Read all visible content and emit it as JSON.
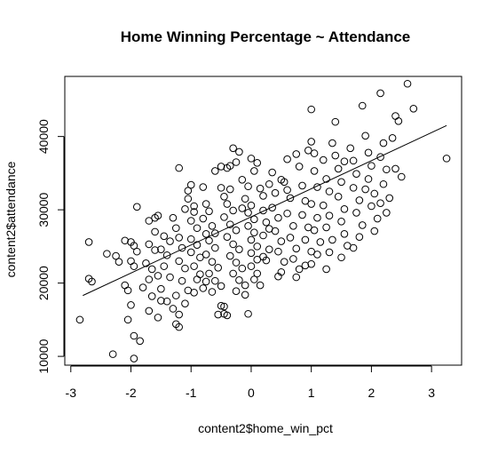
{
  "chart_data": {
    "type": "scatter",
    "title": "Home Winning Percentage ~ Attendance",
    "xlabel": "content2$home_win_pct",
    "ylabel": "content2$attendance",
    "xlim": [
      -3.1,
      3.5
    ],
    "ylim": [
      8800,
      48200
    ],
    "x_ticks": [
      -3,
      -2,
      -1,
      0,
      1,
      2,
      3
    ],
    "x_tick_labels": [
      "-3",
      "-2",
      "-1",
      "0",
      "1",
      "2",
      "3"
    ],
    "y_ticks": [
      10000,
      20000,
      30000,
      40000
    ],
    "y_tick_labels": [
      "10000",
      "20000",
      "30000",
      "40000"
    ],
    "grid": false,
    "legend": "none",
    "marker": "open-circle",
    "fit_line": {
      "x": [
        -2.8,
        3.25
      ],
      "y": [
        18300,
        41500
      ]
    },
    "points": [
      [
        -2.85,
        15000
      ],
      [
        -2.7,
        20600
      ],
      [
        -2.65,
        20200
      ],
      [
        -2.7,
        25600
      ],
      [
        -2.4,
        24000
      ],
      [
        -2.25,
        23700
      ],
      [
        -2.3,
        10300
      ],
      [
        -2.2,
        22900
      ],
      [
        -2.1,
        25800
      ],
      [
        -2.0,
        25600
      ],
      [
        -1.95,
        25100
      ],
      [
        -2.0,
        23000
      ],
      [
        -1.9,
        24300
      ],
      [
        -1.95,
        22300
      ],
      [
        -2.05,
        19000
      ],
      [
        -2.0,
        17000
      ],
      [
        -2.05,
        15000
      ],
      [
        -1.95,
        12800
      ],
      [
        -1.85,
        12100
      ],
      [
        -1.95,
        9700
      ],
      [
        -2.1,
        19700
      ],
      [
        -1.9,
        30400
      ],
      [
        -1.7,
        28500
      ],
      [
        -1.6,
        28900
      ],
      [
        -1.55,
        29200
      ],
      [
        -1.7,
        25300
      ],
      [
        -1.6,
        24500
      ],
      [
        -1.75,
        22700
      ],
      [
        -1.65,
        21900
      ],
      [
        -1.55,
        21000
      ],
      [
        -1.7,
        20500
      ],
      [
        -1.8,
        19400
      ],
      [
        -1.65,
        18200
      ],
      [
        -1.5,
        17600
      ],
      [
        -1.7,
        16200
      ],
      [
        -1.55,
        15300
      ],
      [
        -1.6,
        27000
      ],
      [
        -1.45,
        26400
      ],
      [
        -1.5,
        24600
      ],
      [
        -1.4,
        23800
      ],
      [
        -1.45,
        22300
      ],
      [
        -1.35,
        20800
      ],
      [
        -1.5,
        19200
      ],
      [
        -1.4,
        17500
      ],
      [
        -1.3,
        16500
      ],
      [
        -1.2,
        15700
      ],
      [
        -1.25,
        14400
      ],
      [
        -1.2,
        14000
      ],
      [
        -1.3,
        28900
      ],
      [
        -1.25,
        27500
      ],
      [
        -1.2,
        26200
      ],
      [
        -1.15,
        24800
      ],
      [
        -1.2,
        23000
      ],
      [
        -1.1,
        22000
      ],
      [
        -1.15,
        20300
      ],
      [
        -1.05,
        19000
      ],
      [
        -1.25,
        18300
      ],
      [
        -1.1,
        17200
      ],
      [
        -1.2,
        35700
      ],
      [
        -1.05,
        32600
      ],
      [
        -1.0,
        33400
      ],
      [
        -1.05,
        31500
      ],
      [
        -0.95,
        30500
      ],
      [
        -1.0,
        28500
      ],
      [
        -0.9,
        27500
      ],
      [
        -1.0,
        26000
      ],
      [
        -0.9,
        25200
      ],
      [
        -1.0,
        24200
      ],
      [
        -0.85,
        23500
      ],
      [
        -0.95,
        22300
      ],
      [
        -0.85,
        21200
      ],
      [
        -0.9,
        20500
      ],
      [
        -0.8,
        19300
      ],
      [
        -0.95,
        18700
      ],
      [
        -0.8,
        33100
      ],
      [
        -0.75,
        30800
      ],
      [
        -0.7,
        29800
      ],
      [
        -0.8,
        28800
      ],
      [
        -0.65,
        27800
      ],
      [
        -0.75,
        26700
      ],
      [
        -0.7,
        25800
      ],
      [
        -0.6,
        24800
      ],
      [
        -0.75,
        23900
      ],
      [
        -0.65,
        22900
      ],
      [
        -0.55,
        22100
      ],
      [
        -0.7,
        21300
      ],
      [
        -0.6,
        20300
      ],
      [
        -0.5,
        19600
      ],
      [
        -0.65,
        18800
      ],
      [
        -0.55,
        15700
      ],
      [
        -0.5,
        16900
      ],
      [
        -0.45,
        15800
      ],
      [
        -0.4,
        15600
      ],
      [
        -0.45,
        16800
      ],
      [
        -0.6,
        35300
      ],
      [
        -0.5,
        35900
      ],
      [
        -0.4,
        35700
      ],
      [
        -0.35,
        36000
      ],
      [
        -0.25,
        36500
      ],
      [
        -0.3,
        38400
      ],
      [
        -0.5,
        33000
      ],
      [
        -0.45,
        31800
      ],
      [
        -0.35,
        32800
      ],
      [
        -0.4,
        30800
      ],
      [
        -0.3,
        29900
      ],
      [
        -0.45,
        29000
      ],
      [
        -0.35,
        28000
      ],
      [
        -0.25,
        27200
      ],
      [
        -0.4,
        26300
      ],
      [
        -0.3,
        25300
      ],
      [
        -0.2,
        24600
      ],
      [
        -0.35,
        23700
      ],
      [
        -0.25,
        22800
      ],
      [
        -0.15,
        22000
      ],
      [
        -0.3,
        21300
      ],
      [
        -0.2,
        20400
      ],
      [
        -0.1,
        19700
      ],
      [
        -0.25,
        18900
      ],
      [
        -0.1,
        18400
      ],
      [
        -0.05,
        15800
      ],
      [
        -0.15,
        34100
      ],
      [
        -0.05,
        33200
      ],
      [
        0.05,
        35300
      ],
      [
        0.0,
        37000
      ],
      [
        0.1,
        36400
      ],
      [
        -0.1,
        31500
      ],
      [
        0.0,
        30600
      ],
      [
        -0.05,
        29600
      ],
      [
        0.05,
        28700
      ],
      [
        -0.05,
        27800
      ],
      [
        0.05,
        26900
      ],
      [
        0.0,
        25900
      ],
      [
        0.1,
        25000
      ],
      [
        0.0,
        24100
      ],
      [
        0.1,
        23200
      ],
      [
        0.0,
        22300
      ],
      [
        0.1,
        21300
      ],
      [
        0.05,
        20500
      ],
      [
        0.15,
        19700
      ],
      [
        0.2,
        31900
      ],
      [
        0.2,
        29900
      ],
      [
        0.25,
        28300
      ],
      [
        0.2,
        26500
      ],
      [
        0.3,
        24600
      ],
      [
        0.25,
        23100
      ],
      [
        0.35,
        35100
      ],
      [
        0.3,
        33500
      ],
      [
        0.4,
        32300
      ],
      [
        0.35,
        30300
      ],
      [
        0.45,
        28900
      ],
      [
        0.4,
        27100
      ],
      [
        0.5,
        25700
      ],
      [
        0.45,
        24300
      ],
      [
        0.55,
        22900
      ],
      [
        0.5,
        21500
      ],
      [
        0.6,
        36900
      ],
      [
        0.55,
        33800
      ],
      [
        0.65,
        31600
      ],
      [
        0.6,
        29500
      ],
      [
        0.7,
        27800
      ],
      [
        0.65,
        26200
      ],
      [
        0.75,
        24700
      ],
      [
        0.7,
        23300
      ],
      [
        0.8,
        21900
      ],
      [
        0.75,
        20800
      ],
      [
        0.8,
        35900
      ],
      [
        0.85,
        33300
      ],
      [
        0.9,
        31200
      ],
      [
        0.85,
        29300
      ],
      [
        0.95,
        27600
      ],
      [
        0.9,
        25900
      ],
      [
        1.0,
        24300
      ],
      [
        0.95,
        38100
      ],
      [
        1.0,
        39300
      ],
      [
        1.0,
        43700
      ],
      [
        1.05,
        37700
      ],
      [
        1.05,
        35300
      ],
      [
        1.1,
        33100
      ],
      [
        1.0,
        30800
      ],
      [
        1.1,
        28900
      ],
      [
        1.05,
        27200
      ],
      [
        1.15,
        25600
      ],
      [
        1.1,
        23900
      ],
      [
        1.0,
        22600
      ],
      [
        1.2,
        36800
      ],
      [
        1.25,
        34200
      ],
      [
        1.3,
        32500
      ],
      [
        1.2,
        30600
      ],
      [
        1.3,
        29200
      ],
      [
        1.25,
        27600
      ],
      [
        1.35,
        25900
      ],
      [
        1.3,
        24200
      ],
      [
        1.35,
        39100
      ],
      [
        1.4,
        37400
      ],
      [
        1.45,
        35600
      ],
      [
        1.5,
        33800
      ],
      [
        1.45,
        31800
      ],
      [
        1.55,
        30100
      ],
      [
        1.5,
        28400
      ],
      [
        1.55,
        26700
      ],
      [
        1.6,
        25100
      ],
      [
        1.5,
        23500
      ],
      [
        1.4,
        42000
      ],
      [
        1.65,
        38400
      ],
      [
        1.7,
        36700
      ],
      [
        1.75,
        34900
      ],
      [
        1.7,
        33000
      ],
      [
        1.8,
        31300
      ],
      [
        1.75,
        29600
      ],
      [
        1.85,
        27900
      ],
      [
        1.8,
        26300
      ],
      [
        1.7,
        24800
      ],
      [
        1.9,
        40100
      ],
      [
        1.95,
        37800
      ],
      [
        2.0,
        36000
      ],
      [
        1.95,
        34200
      ],
      [
        2.05,
        32200
      ],
      [
        2.0,
        30500
      ],
      [
        2.1,
        28800
      ],
      [
        2.05,
        27100
      ],
      [
        1.85,
        44200
      ],
      [
        2.2,
        39100
      ],
      [
        2.15,
        37200
      ],
      [
        2.25,
        35500
      ],
      [
        2.2,
        33500
      ],
      [
        2.3,
        31600
      ],
      [
        2.25,
        29600
      ],
      [
        2.15,
        45900
      ],
      [
        2.35,
        39800
      ],
      [
        2.4,
        42800
      ],
      [
        2.45,
        42100
      ],
      [
        2.4,
        35600
      ],
      [
        2.5,
        34500
      ],
      [
        2.6,
        47200
      ],
      [
        2.7,
        43800
      ],
      [
        3.25,
        37000
      ],
      [
        0.5,
        34100
      ],
      [
        0.6,
        32700
      ],
      [
        -0.15,
        30200
      ],
      [
        0.3,
        27400
      ],
      [
        -0.6,
        26800
      ],
      [
        0.9,
        22400
      ],
      [
        1.25,
        21900
      ],
      [
        -0.95,
        29700
      ],
      [
        -1.35,
        25700
      ],
      [
        0.15,
        32900
      ],
      [
        0.75,
        37600
      ],
      [
        -0.2,
        37900
      ],
      [
        1.55,
        36600
      ],
      [
        1.9,
        32800
      ],
      [
        2.15,
        30900
      ],
      [
        -1.1,
        30100
      ],
      [
        0.45,
        20900
      ],
      [
        -0.75,
        20200
      ],
      [
        0.2,
        23600
      ]
    ]
  }
}
